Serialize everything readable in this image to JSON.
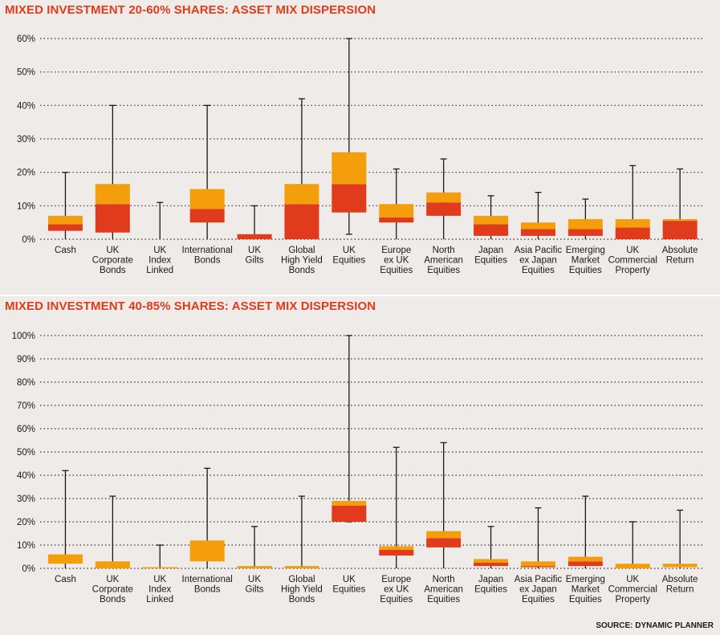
{
  "colors": {
    "q1": "#e03b1c",
    "q2": "#f59e0b",
    "whisker": "#1a1a1a",
    "title": "#e03b1c",
    "grid": "#333333"
  },
  "source": "SOURCE: DYNAMIC PLANNER",
  "chart_data": [
    {
      "type": "box",
      "title": "MIXED INVESTMENT 20-60% SHARES: ASSET MIX DISPERSION",
      "ylim": [
        0,
        60
      ],
      "yticks": [
        "0%",
        "10%",
        "20%",
        "30%",
        "40%",
        "50%",
        "60%"
      ],
      "grid": true,
      "categories": [
        {
          "label": [
            "Cash"
          ],
          "min": 0,
          "q1": 2.5,
          "median": 4.5,
          "q3": 7,
          "max": 20
        },
        {
          "label": [
            "UK",
            "Corporate",
            "Bonds"
          ],
          "min": 0,
          "q1": 2,
          "median": 10.5,
          "q3": 16.5,
          "max": 40
        },
        {
          "label": [
            "UK",
            "Index",
            "Linked"
          ],
          "min": 0,
          "q1": 0,
          "median": 0,
          "q3": 0,
          "max": 11
        },
        {
          "label": [
            "International",
            "Bonds"
          ],
          "min": 0,
          "q1": 5,
          "median": 9,
          "q3": 15,
          "max": 40
        },
        {
          "label": [
            "UK",
            "Gilts"
          ],
          "min": 0,
          "q1": 0,
          "median": 1.5,
          "q3": 1.5,
          "max": 10
        },
        {
          "label": [
            "Global",
            "High Yield",
            "Bonds"
          ],
          "min": 0,
          "q1": 0,
          "median": 10.5,
          "q3": 16.5,
          "max": 42
        },
        {
          "label": [
            "UK",
            "Equities"
          ],
          "min": 1.5,
          "q1": 8,
          "median": 16.5,
          "q3": 26,
          "max": 60
        },
        {
          "label": [
            "Europe",
            "ex UK",
            "Equities"
          ],
          "min": 0,
          "q1": 5,
          "median": 6.5,
          "q3": 10.5,
          "max": 21
        },
        {
          "label": [
            "North",
            "American",
            "Equities"
          ],
          "min": 0,
          "q1": 7,
          "median": 11,
          "q3": 14,
          "max": 24
        },
        {
          "label": [
            "Japan",
            "Equities"
          ],
          "min": 0,
          "q1": 1,
          "median": 4.5,
          "q3": 7,
          "max": 13
        },
        {
          "label": [
            "Asia Pacific",
            "ex Japan",
            "Equities"
          ],
          "min": 0,
          "q1": 1,
          "median": 3,
          "q3": 5,
          "max": 14
        },
        {
          "label": [
            "Emerging",
            "Market",
            "Equities"
          ],
          "min": 0,
          "q1": 1,
          "median": 3,
          "q3": 6,
          "max": 12
        },
        {
          "label": [
            "UK",
            "Commercial",
            "Property"
          ],
          "min": 0,
          "q1": 0,
          "median": 3.5,
          "q3": 6,
          "max": 22
        },
        {
          "label": [
            "Absolute",
            "Return"
          ],
          "min": 0,
          "q1": 0,
          "median": 5.5,
          "q3": 6,
          "max": 21
        }
      ]
    },
    {
      "type": "box",
      "title": "MIXED INVESTMENT 40-85% SHARES: ASSET MIX DISPERSION",
      "ylim": [
        0,
        100
      ],
      "yticks": [
        "0%",
        "10%",
        "20%",
        "30%",
        "40%",
        "50%",
        "60%",
        "70%",
        "80%",
        "90%",
        "100%"
      ],
      "grid": true,
      "categories": [
        {
          "label": [
            "Cash"
          ],
          "min": 0,
          "q1": 2,
          "median": 2,
          "q3": 6,
          "max": 42
        },
        {
          "label": [
            "UK",
            "Corporate",
            "Bonds"
          ],
          "min": 0,
          "q1": 0,
          "median": 0,
          "q3": 3,
          "max": 31
        },
        {
          "label": [
            "UK",
            "Index",
            "Linked"
          ],
          "min": 0,
          "q1": 0,
          "median": 0,
          "q3": 0.5,
          "max": 10
        },
        {
          "label": [
            "International",
            "Bonds"
          ],
          "min": 0,
          "q1": 3,
          "median": 3,
          "q3": 12,
          "max": 43
        },
        {
          "label": [
            "UK",
            "Gilts"
          ],
          "min": 0,
          "q1": 0,
          "median": 0,
          "q3": 1,
          "max": 18
        },
        {
          "label": [
            "Global",
            "High Yield",
            "Bonds"
          ],
          "min": 0,
          "q1": 0,
          "median": 0,
          "q3": 1,
          "max": 31
        },
        {
          "label": [
            "UK",
            "Equities"
          ],
          "min": 20,
          "q1": 20,
          "median": 27,
          "q3": 29,
          "max": 100
        },
        {
          "label": [
            "Europe",
            "ex UK",
            "Equities"
          ],
          "min": 0,
          "q1": 5.5,
          "median": 8,
          "q3": 9.5,
          "max": 52
        },
        {
          "label": [
            "North",
            "American",
            "Equities"
          ],
          "min": 0,
          "q1": 9,
          "median": 13,
          "q3": 16,
          "max": 54
        },
        {
          "label": [
            "Japan",
            "Equities"
          ],
          "min": 0,
          "q1": 1,
          "median": 2.5,
          "q3": 4,
          "max": 18
        },
        {
          "label": [
            "Asia Pacific",
            "ex Japan",
            "Equities"
          ],
          "min": 0,
          "q1": 0.5,
          "median": 1,
          "q3": 3,
          "max": 26
        },
        {
          "label": [
            "Emerging",
            "Market",
            "Equities"
          ],
          "min": 0,
          "q1": 1,
          "median": 3,
          "q3": 5,
          "max": 31
        },
        {
          "label": [
            "UK",
            "Commercial",
            "Property"
          ],
          "min": 0,
          "q1": 0,
          "median": 0,
          "q3": 2,
          "max": 20
        },
        {
          "label": [
            "Absolute",
            "Return"
          ],
          "min": 0,
          "q1": 0.5,
          "median": 0.5,
          "q3": 2,
          "max": 25
        }
      ]
    }
  ]
}
